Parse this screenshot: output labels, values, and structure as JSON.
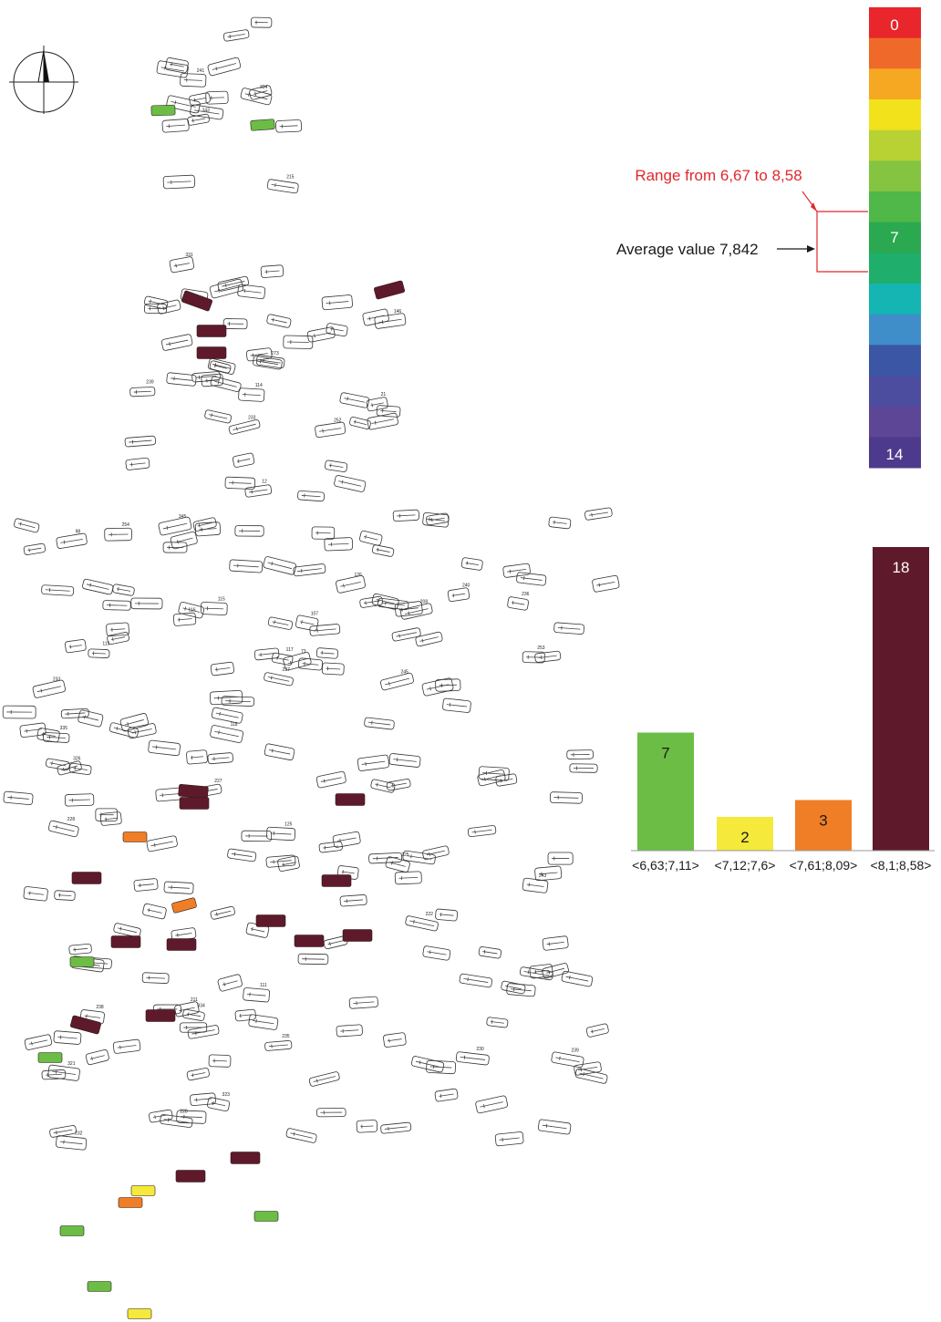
{
  "scale": {
    "top_label": "0",
    "mid_label": "7",
    "bottom_label": "14",
    "colors": [
      "#e8262b",
      "#ef6a2a",
      "#f6a822",
      "#f2e21c",
      "#b8d234",
      "#84c441",
      "#4fb848",
      "#2aa950",
      "#1fae6b",
      "#14b5b2",
      "#3f8ec9",
      "#3a56a4",
      "#4d4d9f",
      "#5e4697",
      "#4e3a8c"
    ]
  },
  "annotations": {
    "range_label": "Range from 6,67 to 8,58",
    "average_label": "Average value 7,842",
    "range_color": "#e0282e",
    "average_color": "#1a1a1a"
  },
  "chart_data": {
    "type": "bar",
    "categories": [
      "<6,63;7,11>",
      "<7,12;7,6>",
      "<7,61;8,09>",
      "<8,1;8,58>"
    ],
    "values": [
      7,
      2,
      3,
      18
    ],
    "colors": [
      "#6cbd45",
      "#f5e93b",
      "#f07e26",
      "#5e1a2b"
    ],
    "value_label_colors": [
      "#1a1a1a",
      "#1a1a1a",
      "#1a1a1a",
      "#ffffff"
    ],
    "ylim": [
      0,
      18
    ]
  },
  "graves": {
    "ids": [
      "126",
      "125",
      "21",
      "211",
      "228",
      "208",
      "107",
      "215",
      "12",
      "114",
      "116",
      "117",
      "115",
      "118",
      "146",
      "73",
      "111",
      "113",
      "98",
      "222",
      "227",
      "235",
      "237",
      "240",
      "230",
      "239",
      "225",
      "241",
      "233",
      "228",
      "343",
      "232",
      "243",
      "238",
      "345",
      "252",
      "253",
      "254",
      "239",
      "236",
      "233",
      "335",
      "334",
      "331",
      "326",
      "273",
      "334",
      "323",
      "245",
      "321"
    ],
    "class_colors": {
      "c1": "#6cbd45",
      "c2": "#f5e93b",
      "c3": "#f07e26",
      "c4": "#5e1a2b"
    }
  },
  "north_arrow": "north-arrow"
}
